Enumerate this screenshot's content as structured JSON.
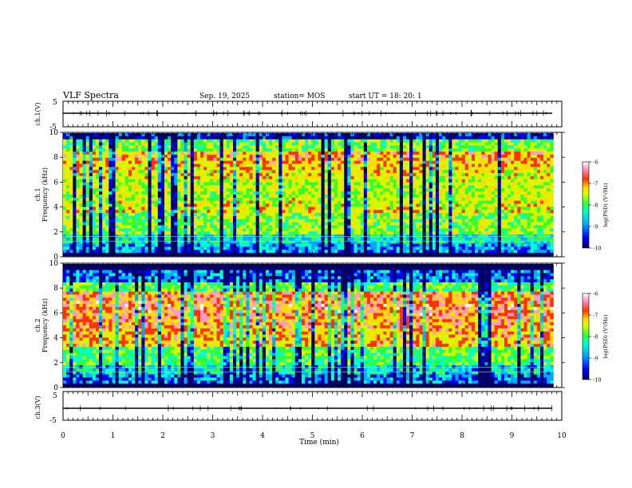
{
  "header": {
    "title": "VLF Spectra",
    "date": "Sep. 19, 2025",
    "station": "station= MOS",
    "start": "start  UT  =   18: 20: 1"
  },
  "chart_data": [
    {
      "type": "line",
      "panel": "ch1-waveform",
      "ylabel": "ch.1(V)",
      "ylim": [
        -5,
        5
      ],
      "yticks": [
        "5",
        "-5"
      ],
      "xlim": [
        0,
        10
      ],
      "baseline": -2.3
    },
    {
      "type": "heatmap",
      "panel": "ch1-spectrogram",
      "ylabel": "ch.1\nFrequency (kHz)",
      "ylim": [
        0,
        10
      ],
      "yticks": [
        "0",
        "2",
        "4",
        "6",
        "8",
        "10"
      ],
      "xlim": [
        0,
        9.83
      ],
      "colorbar": {
        "label": "log(PSD) (V²/Hz)",
        "range": [
          -10,
          -6
        ],
        "ticks": [
          "-6",
          "-7",
          "-8",
          "-9",
          "-10"
        ]
      }
    },
    {
      "type": "heatmap",
      "panel": "ch2-spectrogram",
      "ylabel": "ch.2\nFrequency (kHz)",
      "ylim": [
        0,
        10
      ],
      "yticks": [
        "0",
        "2",
        "4",
        "6",
        "8",
        "10"
      ],
      "xlim": [
        0,
        9.83
      ],
      "colorbar": {
        "label": "log(PSD) (V²/Hz)",
        "range": [
          -10,
          -6
        ],
        "ticks": [
          "-6",
          "-7",
          "-8",
          "-9",
          "-10"
        ]
      }
    },
    {
      "type": "line",
      "panel": "ch3-waveform",
      "ylabel": "ch.3(V)",
      "ylim": [
        -5,
        5
      ],
      "yticks": [
        "5",
        "-5"
      ],
      "xlim": [
        0,
        10
      ],
      "baseline": -1.5
    }
  ],
  "xaxis": {
    "label": "Time  (min)",
    "ticks": [
      "0",
      "1",
      "2",
      "3",
      "4",
      "5",
      "6",
      "7",
      "8",
      "9",
      "10"
    ]
  },
  "colormap": [
    "#000066",
    "#0000ff",
    "#00aaff",
    "#00ffcc",
    "#33ff33",
    "#ccff00",
    "#ffdd00",
    "#ff3300",
    "#ff99cc",
    "#ffffff"
  ]
}
